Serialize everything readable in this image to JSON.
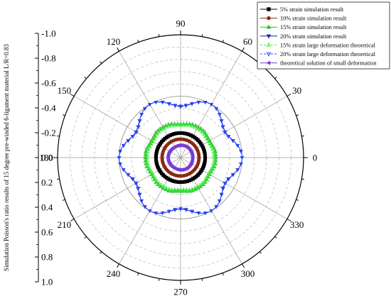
{
  "chart_data": {
    "type": "polar",
    "radial_axis": {
      "label": "Simulation Poisson's ratio results of 15 degree pre-winded 6-ligament material L/R=0.83",
      "range": [
        -1.0,
        1.0
      ],
      "ticks": [
        "-1.0",
        "-0.8",
        "-0.6",
        "-0.4",
        "-0.2",
        "0.0",
        "0.2",
        "0.4",
        "0.6",
        "0.8",
        "1.0"
      ],
      "tick_values": [
        1.0,
        0.8,
        0.6,
        0.4,
        0.2,
        0.0,
        -0.2,
        -0.4,
        -0.6,
        -0.8,
        -1.0
      ]
    },
    "angular_axis": {
      "ticks": [
        "0",
        "30",
        "60",
        "90",
        "120",
        "150",
        "180",
        "210",
        "240",
        "270",
        "300",
        "330"
      ],
      "tick_angles": [
        0,
        30,
        60,
        90,
        120,
        150,
        180,
        210,
        240,
        270,
        300,
        330
      ]
    },
    "grid": true,
    "legend_position": "top-right",
    "series": [
      {
        "name": "5% strain simulation result",
        "color": "#000000",
        "marker": "square",
        "shape": "circle",
        "r": -0.6
      },
      {
        "name": "10% strain simulation result",
        "color": "#8b2a10",
        "marker": "circle",
        "shape": "circle",
        "r": -0.7
      },
      {
        "name": "15% strain simulation result",
        "color": "#22bb22",
        "marker": "triangle-up",
        "shape": "hexagon",
        "r_max": -0.43,
        "r_min": -0.37
      },
      {
        "name": "20% strain simulation result",
        "color": "#1a1acc",
        "marker": "triangle-down",
        "shape": "star6",
        "r_max": -0.16,
        "r_min": 0.0
      },
      {
        "name": "15% strain large deformation theoretical",
        "color": "#44ee44",
        "marker": "triangle-up-open",
        "shape": "hexagon",
        "r_max": -0.45,
        "r_min": -0.39,
        "dash": true
      },
      {
        "name": "20% strain large deformation theoretical",
        "color": "#3355ff",
        "marker": "triangle-down-open",
        "shape": "star6",
        "r_max": -0.17,
        "r_min": 0.0,
        "dash": true
      },
      {
        "name": "theoretical solution of small deformation",
        "color": "#7a3ad8",
        "marker": "triangle-left",
        "shape": "circle",
        "r": -0.8
      }
    ]
  }
}
